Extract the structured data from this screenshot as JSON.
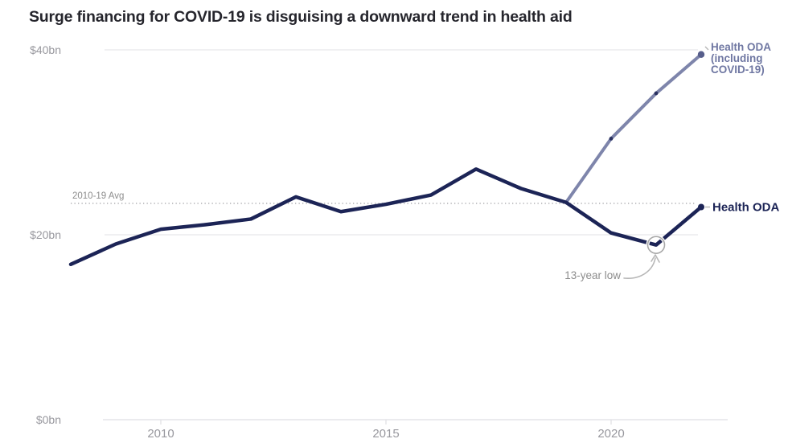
{
  "title": "Surge financing for COVID-19 is disguising a downward trend in health aid",
  "chart_data": {
    "type": "line",
    "title": "Surge financing for COVID-19 is disguising a downward trend in health aid",
    "x": [
      2008,
      2009,
      2010,
      2011,
      2012,
      2013,
      2014,
      2015,
      2016,
      2017,
      2018,
      2019,
      2020,
      2021,
      2022
    ],
    "series": [
      {
        "name": "Health ODA",
        "color": "#1c2456",
        "years": [
          2008,
          2009,
          2010,
          2011,
          2012,
          2013,
          2014,
          2015,
          2016,
          2017,
          2018,
          2019,
          2020,
          2021,
          2022
        ],
        "values": [
          16.8,
          19.0,
          20.6,
          21.1,
          21.7,
          24.1,
          22.5,
          23.3,
          24.3,
          27.1,
          25.0,
          23.5,
          20.2,
          18.9,
          23.0
        ]
      },
      {
        "name": "Health ODA (including COVID-19)",
        "color": "#7e85ab",
        "years": [
          2019,
          2020,
          2021,
          2022
        ],
        "values": [
          23.5,
          30.4,
          35.3,
          39.5
        ]
      }
    ],
    "ylabel": "",
    "xlabel": "",
    "ylim": [
      0,
      40
    ],
    "xlim": [
      2008,
      2022
    ],
    "grid": "horizontal",
    "yticks": [
      {
        "v": 0,
        "label": "$0bn"
      },
      {
        "v": 20,
        "label": "$20bn"
      },
      {
        "v": 40,
        "label": "$40bn"
      }
    ],
    "xticks": [
      {
        "v": 2010,
        "label": "2010"
      },
      {
        "v": 2015,
        "label": "2015"
      },
      {
        "v": 2020,
        "label": "2020"
      }
    ],
    "average_line": {
      "value": 23.4,
      "label": "2010-19 Avg",
      "style": "dotted"
    },
    "annotations": [
      {
        "label": "13-year low",
        "year": 2021,
        "value": 18.9,
        "marker": "circle-with-arrow"
      }
    ],
    "legend": {
      "position": "right-end-of-lines",
      "health_oda": "Health ODA",
      "covid_lines": [
        "Health ODA",
        "(including",
        "COVID-19)"
      ]
    }
  },
  "colors": {
    "navy": "#1c2456",
    "slate": "#7e85ab",
    "slate_label": "#6f77a2",
    "covid_dot": "#2a3160",
    "title": "#26262d",
    "axis_label": "#98989e",
    "grid": "#e7e7ea",
    "axis_line": "#dfdfe3",
    "dotted_line": "#b4b4b8",
    "annotation_text": "#8d8d8d",
    "annotation_arrow": "#b7b7b7",
    "annotation_circle": "#a8a8a8"
  }
}
